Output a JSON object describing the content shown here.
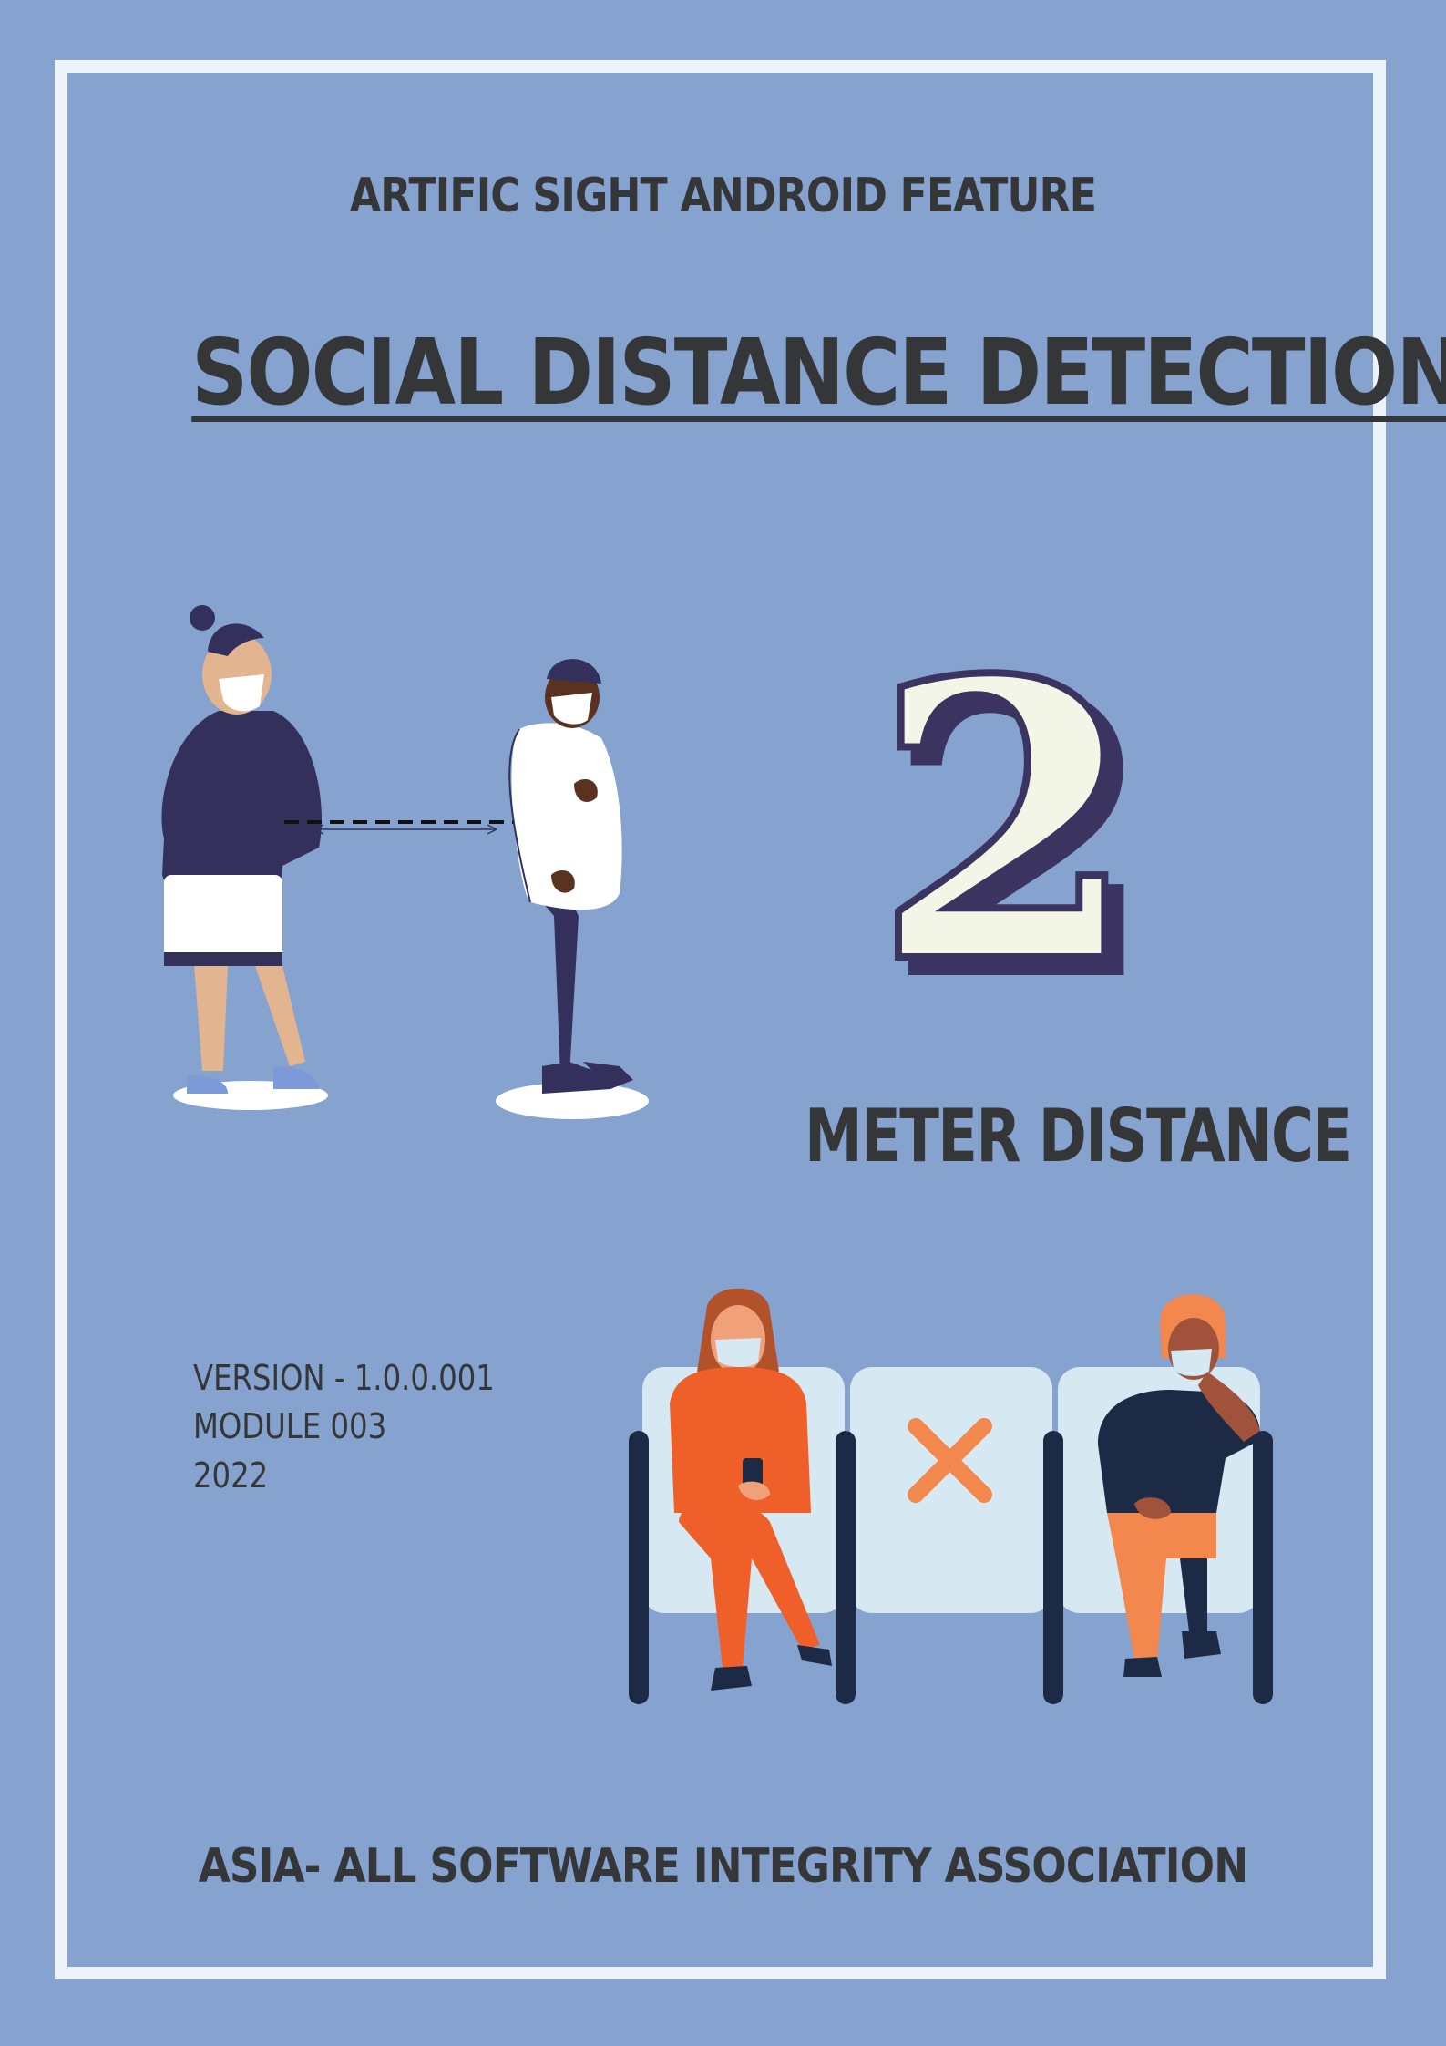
{
  "subtitle": "ARTIFIC SIGHT ANDROID FEATURE",
  "title": " SOCIAL DISTANCE DETECTION",
  "big_number": "2",
  "meter_label": "METER DISTANCE",
  "version_lines": [
    "VERSION - 1.0.0.001",
    "MODULE 003",
    "2022"
  ],
  "footer": "ASIA- ALL SOFTWARE INTEGRITY ASSOCIATION",
  "colors": {
    "background": "#86a2cf",
    "frame": "#ecf3fb",
    "text": "#343637",
    "navy": "#3b3461",
    "cream": "#f3f6e6",
    "orange": "#ef5f2a",
    "seat": "#d6e8f2"
  },
  "icons": {
    "distance_people": "two-standing-people-illustration",
    "seated_people": "seated-people-illustration",
    "blocked_seat": "x-mark-icon"
  }
}
